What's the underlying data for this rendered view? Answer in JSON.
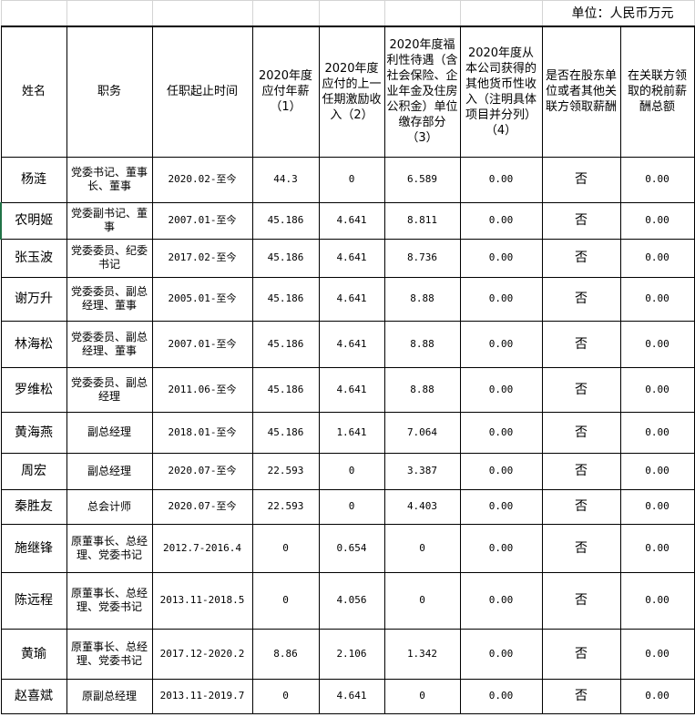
{
  "unit": "单位：人民币万元",
  "headers": [
    "姓名",
    "职务",
    "任职起止时间",
    "2020年度应付年薪（1）",
    "2020年度应付的上一任期激励收入（2）",
    "2020年度福利性待遇（含社会保险、企业年金及住房公积金）单位缴存部分（3）",
    "2020年度从本公司获得的其他货币性收入（注明具体项目并分列）（4）",
    "是否在股东单位或者其他关联方领取薪酬",
    "在关联方领取的税前薪酬总额"
  ],
  "rows": [
    [
      "杨涟",
      "党委书记、董事长、董事",
      "2020.02-至今",
      "44.3",
      "0",
      "6.589",
      "0.00",
      "否",
      "0.00"
    ],
    [
      "农明姬",
      "党委副书记、董事",
      "2007.01-至今",
      "45.186",
      "4.641",
      "8.811",
      "0.00",
      "否",
      "0.00"
    ],
    [
      "张玉波",
      "党委委员、纪委书记",
      "2017.02-至今",
      "45.186",
      "4.641",
      "8.736",
      "0.00",
      "否",
      "0.00"
    ],
    [
      "谢万升",
      "党委委员、副总经理、董事",
      "2005.01-至今",
      "45.186",
      "4.641",
      "8.88",
      "0.00",
      "否",
      "0.00"
    ],
    [
      "林海松",
      "党委委员、副总经理、董事",
      "2007.01-至今",
      "45.186",
      "4.641",
      "8.88",
      "0.00",
      "否",
      "0.00"
    ],
    [
      "罗维松",
      "党委委员、副总经理",
      "2011.06-至今",
      "45.186",
      "4.641",
      "8.88",
      "0.00",
      "否",
      "0.00"
    ],
    [
      "黄海燕",
      "副总经理",
      "2018.01-至今",
      "45.186",
      "1.641",
      "7.064",
      "0.00",
      "否",
      "0.00"
    ],
    [
      "周宏",
      "副总经理",
      "2020.07-至今",
      "22.593",
      "0",
      "3.387",
      "0.00",
      "否",
      "0.00"
    ],
    [
      "秦胜友",
      "总会计师",
      "2020.07-至今",
      "22.593",
      "0",
      "4.403",
      "0.00",
      "否",
      "0.00"
    ],
    [
      "施继锋",
      "原董事长、总经理、党委书记",
      "2012.7-2016.4",
      "0",
      "0.654",
      "0",
      "0.00",
      "否",
      "0.00"
    ],
    [
      "陈远程",
      "原董事长、总经理、党委书记",
      "2013.11-2018.5",
      "0",
      "4.056",
      "0",
      "0.00",
      "否",
      "0.00"
    ],
    [
      "黄瑜",
      "原董事长、总经理、党委书记",
      "2017.12-2020.2",
      "8.86",
      "2.106",
      "1.342",
      "0.00",
      "否",
      "0.00"
    ],
    [
      "赵喜斌",
      "原副总经理",
      "2013.11-2019.7",
      "0",
      "4.641",
      "0",
      "0.00",
      "否",
      "0.00"
    ]
  ]
}
